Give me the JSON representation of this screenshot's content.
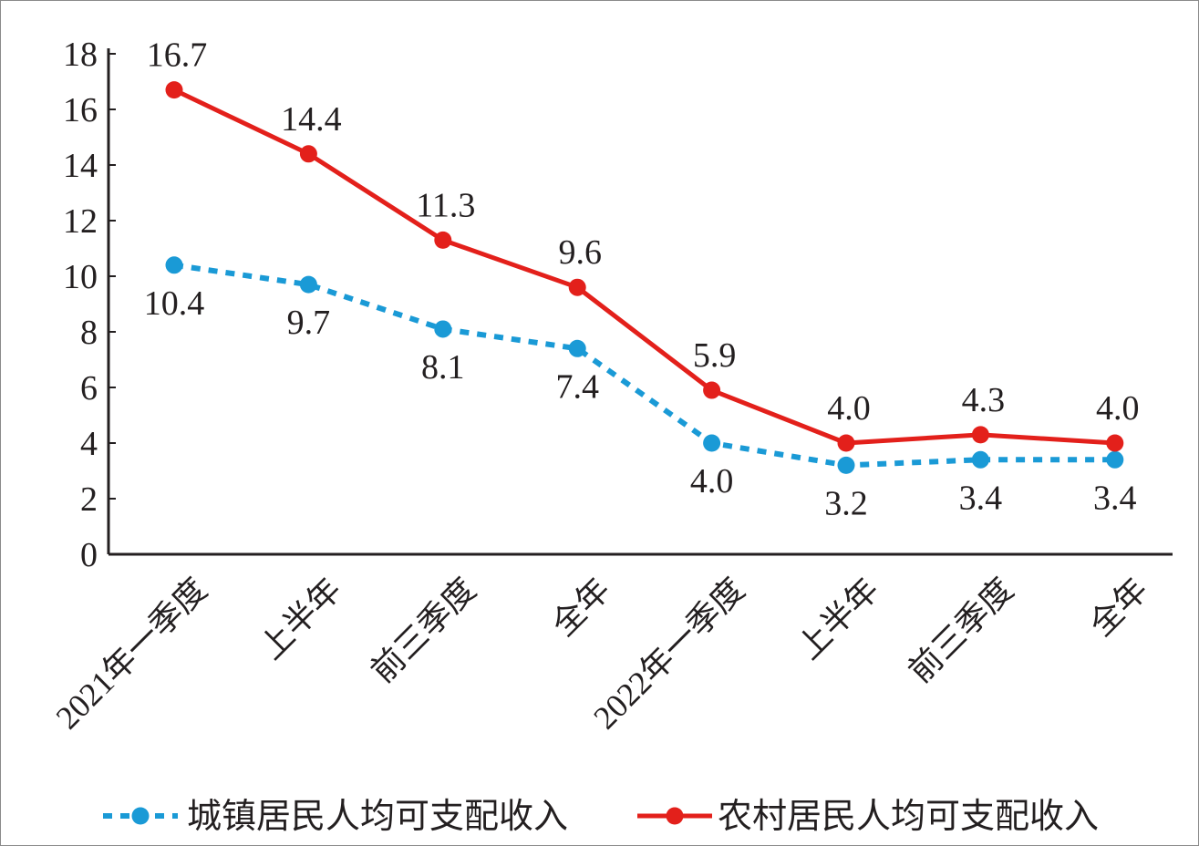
{
  "chart_data": {
    "type": "line",
    "categories": [
      "2021年一季度",
      "上半年",
      "前三季度",
      "全年",
      "2022年一季度",
      "上半年",
      "前三季度",
      "全年"
    ],
    "series": [
      {
        "name": "城镇居民人均可支配收入",
        "values": [
          10.4,
          9.7,
          8.1,
          7.4,
          4.0,
          3.2,
          3.4,
          3.4
        ],
        "labels": [
          "10.4",
          "9.7",
          "8.1",
          "7.4",
          "4.0",
          "3.2",
          "3.4",
          "3.4"
        ],
        "color": "#1a9ad6",
        "style": "dashed"
      },
      {
        "name": "农村居民人均可支配收入",
        "values": [
          16.7,
          14.4,
          11.3,
          9.6,
          5.9,
          4.0,
          4.3,
          4.0
        ],
        "labels": [
          "16.7",
          "14.4",
          "11.3",
          "9.6",
          "5.9",
          "4.0",
          "4.3",
          "4.0"
        ],
        "color": "#e3201b",
        "style": "solid"
      }
    ],
    "ylim": [
      0,
      18
    ],
    "yticks": [
      "0",
      "2",
      "4",
      "6",
      "8",
      "10",
      "12",
      "14",
      "16",
      "18"
    ],
    "title": "",
    "xlabel": "",
    "ylabel": "",
    "grid": false,
    "legend": "bottom"
  }
}
